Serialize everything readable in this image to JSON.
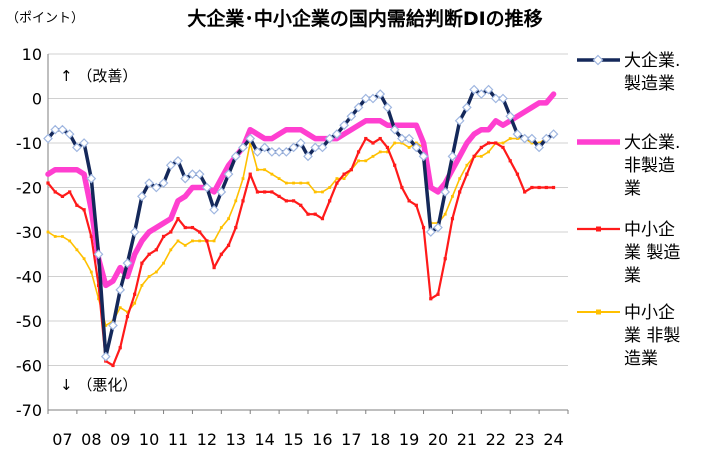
{
  "chart_data": {
    "type": "line",
    "title": "大企業･中小企業の国内需給判断DIの推移",
    "unit_label": "（ポイント）",
    "up_annotation": "↑ （改善）",
    "down_annotation": "↓ （悪化）",
    "ylim": [
      -70,
      10
    ],
    "yticks": [
      10,
      0,
      -10,
      -20,
      -30,
      -40,
      -50,
      -60,
      -70
    ],
    "xlim": [
      2007.0,
      2025.0
    ],
    "xtick_labels": [
      "07",
      "08",
      "09",
      "10",
      "11",
      "12",
      "13",
      "14",
      "15",
      "16",
      "17",
      "18",
      "19",
      "20",
      "21",
      "22",
      "23",
      "24"
    ],
    "grid": "horizontal",
    "legend_position": "right",
    "series": [
      {
        "name_lines": [
          "大企業.",
          "製造業"
        ],
        "color": "#14285a",
        "marker": "diamond",
        "points": [
          [
            2007.0,
            -9
          ],
          [
            2007.25,
            -7
          ],
          [
            2007.5,
            -7
          ],
          [
            2007.75,
            -8
          ],
          [
            2008.0,
            -11
          ],
          [
            2008.25,
            -10
          ],
          [
            2008.5,
            -18
          ],
          [
            2008.75,
            -35
          ],
          [
            2009.0,
            -58
          ],
          [
            2009.25,
            -51
          ],
          [
            2009.5,
            -43
          ],
          [
            2009.75,
            -37
          ],
          [
            2010.0,
            -30
          ],
          [
            2010.25,
            -22
          ],
          [
            2010.5,
            -19
          ],
          [
            2010.75,
            -20
          ],
          [
            2011.0,
            -19
          ],
          [
            2011.25,
            -15
          ],
          [
            2011.5,
            -14
          ],
          [
            2011.75,
            -18
          ],
          [
            2012.0,
            -17
          ],
          [
            2012.25,
            -17
          ],
          [
            2012.5,
            -20
          ],
          [
            2012.75,
            -25
          ],
          [
            2013.0,
            -21
          ],
          [
            2013.25,
            -17
          ],
          [
            2013.5,
            -13
          ],
          [
            2013.75,
            -11
          ],
          [
            2014.0,
            -9
          ],
          [
            2014.25,
            -12
          ],
          [
            2014.5,
            -11
          ],
          [
            2014.75,
            -12
          ],
          [
            2015.0,
            -12
          ],
          [
            2015.25,
            -12
          ],
          [
            2015.5,
            -11
          ],
          [
            2015.75,
            -10
          ],
          [
            2016.0,
            -13
          ],
          [
            2016.25,
            -11
          ],
          [
            2016.5,
            -11
          ],
          [
            2016.75,
            -9
          ],
          [
            2017.0,
            -8
          ],
          [
            2017.25,
            -6
          ],
          [
            2017.5,
            -4
          ],
          [
            2017.75,
            -2
          ],
          [
            2018.0,
            0
          ],
          [
            2018.25,
            0
          ],
          [
            2018.5,
            1
          ],
          [
            2018.75,
            -2
          ],
          [
            2019.0,
            -7
          ],
          [
            2019.25,
            -9
          ],
          [
            2019.5,
            -9
          ],
          [
            2019.75,
            -11
          ],
          [
            2020.0,
            -13
          ],
          [
            2020.25,
            -30
          ],
          [
            2020.5,
            -29
          ],
          [
            2020.75,
            -21
          ],
          [
            2021.0,
            -13
          ],
          [
            2021.25,
            -5
          ],
          [
            2021.5,
            -2
          ],
          [
            2021.75,
            2
          ],
          [
            2022.0,
            1
          ],
          [
            2022.25,
            2
          ],
          [
            2022.5,
            0
          ],
          [
            2022.75,
            0
          ],
          [
            2023.0,
            -4
          ],
          [
            2023.25,
            -8
          ],
          [
            2023.5,
            -9
          ],
          [
            2023.75,
            -9
          ],
          [
            2024.0,
            -11
          ],
          [
            2024.25,
            -9
          ],
          [
            2024.5,
            -8
          ]
        ]
      },
      {
        "name_lines": [
          "大企業.",
          "非製造",
          "業"
        ],
        "color": "#ff3fd0",
        "marker": "none",
        "points": [
          [
            2007.0,
            -17
          ],
          [
            2007.25,
            -16
          ],
          [
            2007.5,
            -16
          ],
          [
            2007.75,
            -16
          ],
          [
            2008.0,
            -16
          ],
          [
            2008.25,
            -17
          ],
          [
            2008.5,
            -25
          ],
          [
            2008.75,
            -36
          ],
          [
            2009.0,
            -42
          ],
          [
            2009.25,
            -41
          ],
          [
            2009.5,
            -38
          ],
          [
            2009.75,
            -40
          ],
          [
            2010.0,
            -35
          ],
          [
            2010.25,
            -32
          ],
          [
            2010.5,
            -30
          ],
          [
            2010.75,
            -29
          ],
          [
            2011.0,
            -28
          ],
          [
            2011.25,
            -27
          ],
          [
            2011.5,
            -23
          ],
          [
            2011.75,
            -22
          ],
          [
            2012.0,
            -20
          ],
          [
            2012.25,
            -20
          ],
          [
            2012.5,
            -20
          ],
          [
            2012.75,
            -21
          ],
          [
            2013.0,
            -18
          ],
          [
            2013.25,
            -15
          ],
          [
            2013.5,
            -13
          ],
          [
            2013.75,
            -11
          ],
          [
            2014.0,
            -7
          ],
          [
            2014.25,
            -8
          ],
          [
            2014.5,
            -9
          ],
          [
            2014.75,
            -9
          ],
          [
            2015.0,
            -8
          ],
          [
            2015.25,
            -7
          ],
          [
            2015.5,
            -7
          ],
          [
            2015.75,
            -7
          ],
          [
            2016.0,
            -8
          ],
          [
            2016.25,
            -9
          ],
          [
            2016.5,
            -9
          ],
          [
            2016.75,
            -9
          ],
          [
            2017.0,
            -9
          ],
          [
            2017.25,
            -8
          ],
          [
            2017.5,
            -7
          ],
          [
            2017.75,
            -6
          ],
          [
            2018.0,
            -5
          ],
          [
            2018.25,
            -5
          ],
          [
            2018.5,
            -5
          ],
          [
            2018.75,
            -6
          ],
          [
            2019.0,
            -6
          ],
          [
            2019.25,
            -6
          ],
          [
            2019.5,
            -6
          ],
          [
            2019.75,
            -6
          ],
          [
            2020.0,
            -10
          ],
          [
            2020.25,
            -20
          ],
          [
            2020.5,
            -21
          ],
          [
            2020.75,
            -19
          ],
          [
            2021.0,
            -16
          ],
          [
            2021.25,
            -13
          ],
          [
            2021.5,
            -10
          ],
          [
            2021.75,
            -8
          ],
          [
            2022.0,
            -7
          ],
          [
            2022.25,
            -7
          ],
          [
            2022.5,
            -5
          ],
          [
            2022.75,
            -6
          ],
          [
            2023.0,
            -5
          ],
          [
            2023.25,
            -4
          ],
          [
            2023.5,
            -3
          ],
          [
            2023.75,
            -2
          ],
          [
            2024.0,
            -1
          ],
          [
            2024.25,
            -1
          ],
          [
            2024.5,
            1
          ]
        ]
      },
      {
        "name_lines": [
          "中小企",
          "業 製造",
          "業"
        ],
        "color": "#ff1a1a",
        "marker": "square",
        "points": [
          [
            2007.0,
            -19
          ],
          [
            2007.25,
            -21
          ],
          [
            2007.5,
            -22
          ],
          [
            2007.75,
            -21
          ],
          [
            2008.0,
            -24
          ],
          [
            2008.25,
            -25
          ],
          [
            2008.5,
            -31
          ],
          [
            2008.75,
            -42
          ],
          [
            2009.0,
            -59
          ],
          [
            2009.25,
            -60
          ],
          [
            2009.5,
            -56
          ],
          [
            2009.75,
            -49
          ],
          [
            2010.0,
            -44
          ],
          [
            2010.25,
            -37
          ],
          [
            2010.5,
            -35
          ],
          [
            2010.75,
            -34
          ],
          [
            2011.0,
            -31
          ],
          [
            2011.25,
            -30
          ],
          [
            2011.5,
            -27
          ],
          [
            2011.75,
            -29
          ],
          [
            2012.0,
            -29
          ],
          [
            2012.25,
            -30
          ],
          [
            2012.5,
            -32
          ],
          [
            2012.75,
            -38
          ],
          [
            2013.0,
            -35
          ],
          [
            2013.25,
            -33
          ],
          [
            2013.5,
            -29
          ],
          [
            2013.75,
            -23
          ],
          [
            2014.0,
            -17
          ],
          [
            2014.25,
            -21
          ],
          [
            2014.5,
            -21
          ],
          [
            2014.75,
            -21
          ],
          [
            2015.0,
            -22
          ],
          [
            2015.25,
            -23
          ],
          [
            2015.5,
            -23
          ],
          [
            2015.75,
            -24
          ],
          [
            2016.0,
            -26
          ],
          [
            2016.25,
            -26
          ],
          [
            2016.5,
            -27
          ],
          [
            2016.75,
            -23
          ],
          [
            2017.0,
            -19
          ],
          [
            2017.25,
            -17
          ],
          [
            2017.5,
            -16
          ],
          [
            2017.75,
            -12
          ],
          [
            2018.0,
            -9
          ],
          [
            2018.25,
            -10
          ],
          [
            2018.5,
            -9
          ],
          [
            2018.75,
            -11
          ],
          [
            2019.0,
            -15
          ],
          [
            2019.25,
            -20
          ],
          [
            2019.5,
            -23
          ],
          [
            2019.75,
            -24
          ],
          [
            2020.0,
            -29
          ],
          [
            2020.25,
            -45
          ],
          [
            2020.5,
            -44
          ],
          [
            2020.75,
            -36
          ],
          [
            2021.0,
            -27
          ],
          [
            2021.25,
            -21
          ],
          [
            2021.5,
            -17
          ],
          [
            2021.75,
            -13
          ],
          [
            2022.0,
            -11
          ],
          [
            2022.25,
            -10
          ],
          [
            2022.5,
            -10
          ],
          [
            2022.75,
            -11
          ],
          [
            2023.0,
            -14
          ],
          [
            2023.25,
            -17
          ],
          [
            2023.5,
            -21
          ],
          [
            2023.75,
            -20
          ],
          [
            2024.0,
            -20
          ],
          [
            2024.25,
            -20
          ],
          [
            2024.5,
            -20
          ]
        ]
      },
      {
        "name_lines": [
          "中小企",
          "業 非製",
          "造業"
        ],
        "color": "#ffc000",
        "marker": "square",
        "points": [
          [
            2007.0,
            -30
          ],
          [
            2007.25,
            -31
          ],
          [
            2007.5,
            -31
          ],
          [
            2007.75,
            -32
          ],
          [
            2008.0,
            -34
          ],
          [
            2008.25,
            -36
          ],
          [
            2008.5,
            -39
          ],
          [
            2008.75,
            -45
          ],
          [
            2009.0,
            -51
          ],
          [
            2009.25,
            -50
          ],
          [
            2009.5,
            -47
          ],
          [
            2009.75,
            -48
          ],
          [
            2010.0,
            -46
          ],
          [
            2010.25,
            -42
          ],
          [
            2010.5,
            -40
          ],
          [
            2010.75,
            -39
          ],
          [
            2011.0,
            -37
          ],
          [
            2011.25,
            -34
          ],
          [
            2011.5,
            -32
          ],
          [
            2011.75,
            -33
          ],
          [
            2012.0,
            -32
          ],
          [
            2012.25,
            -32
          ],
          [
            2012.5,
            -32
          ],
          [
            2012.75,
            -32
          ],
          [
            2013.0,
            -29
          ],
          [
            2013.25,
            -27
          ],
          [
            2013.5,
            -23
          ],
          [
            2013.75,
            -18
          ],
          [
            2014.0,
            -10
          ],
          [
            2014.25,
            -16
          ],
          [
            2014.5,
            -16
          ],
          [
            2014.75,
            -17
          ],
          [
            2015.0,
            -18
          ],
          [
            2015.25,
            -19
          ],
          [
            2015.5,
            -19
          ],
          [
            2015.75,
            -19
          ],
          [
            2016.0,
            -19
          ],
          [
            2016.25,
            -21
          ],
          [
            2016.5,
            -21
          ],
          [
            2016.75,
            -20
          ],
          [
            2017.0,
            -18
          ],
          [
            2017.25,
            -18
          ],
          [
            2017.5,
            -16
          ],
          [
            2017.75,
            -14
          ],
          [
            2018.0,
            -14
          ],
          [
            2018.25,
            -13
          ],
          [
            2018.5,
            -12
          ],
          [
            2018.75,
            -12
          ],
          [
            2019.0,
            -10
          ],
          [
            2019.25,
            -10
          ],
          [
            2019.5,
            -11
          ],
          [
            2019.75,
            -10
          ],
          [
            2020.0,
            -11
          ],
          [
            2020.25,
            -28
          ],
          [
            2020.5,
            -28
          ],
          [
            2020.75,
            -26
          ],
          [
            2021.0,
            -22
          ],
          [
            2021.25,
            -18
          ],
          [
            2021.5,
            -15
          ],
          [
            2021.75,
            -13
          ],
          [
            2022.0,
            -13
          ],
          [
            2022.25,
            -12
          ],
          [
            2022.5,
            -10
          ],
          [
            2022.75,
            -10
          ],
          [
            2023.0,
            -9
          ],
          [
            2023.25,
            -9
          ],
          [
            2023.5,
            -9
          ],
          [
            2023.75,
            -10
          ],
          [
            2024.0,
            -10
          ],
          [
            2024.25,
            -9
          ],
          [
            2024.5,
            -8
          ]
        ]
      }
    ]
  }
}
